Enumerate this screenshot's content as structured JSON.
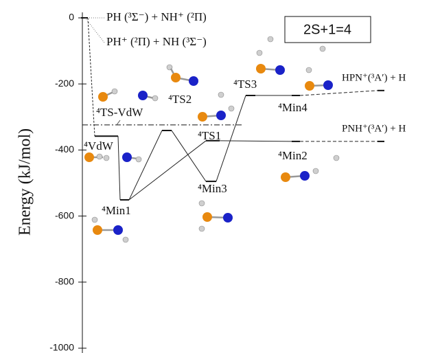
{
  "chart_data": {
    "type": "energy-diagram",
    "y_label": "Energy (kJ/mol)",
    "annotation": "2S+1=4",
    "ylim": [
      -1000,
      0
    ],
    "yticks": [
      0,
      -200,
      -400,
      -600,
      -800,
      -1000
    ],
    "levels": [
      {
        "name": "PH (³Σ⁻) + NH⁺ (²Π)",
        "value": 0
      },
      {
        "name": "PH⁺ (²Π) + NH (³Σ⁻)",
        "value": 0
      },
      {
        "name": "⁴VdW",
        "value": -358
      },
      {
        "name": "⁴Min1",
        "value": -551
      },
      {
        "name": "⁴TS2",
        "value": -341
      },
      {
        "name": "⁴Min3",
        "value": -495
      },
      {
        "name": "⁴TS1",
        "value": -372
      },
      {
        "name": "⁴TS3",
        "value": -235
      },
      {
        "name": "⁴Min4",
        "value": -235
      },
      {
        "name": "⁴Min2",
        "value": -374
      },
      {
        "name": "HPN⁺(³A′) + H",
        "value": -220
      },
      {
        "name": "PNH⁺(³A′) + H",
        "value": -374
      }
    ],
    "reference": {
      "name": "⁴TS-VdW",
      "value": -324
    }
  }
}
